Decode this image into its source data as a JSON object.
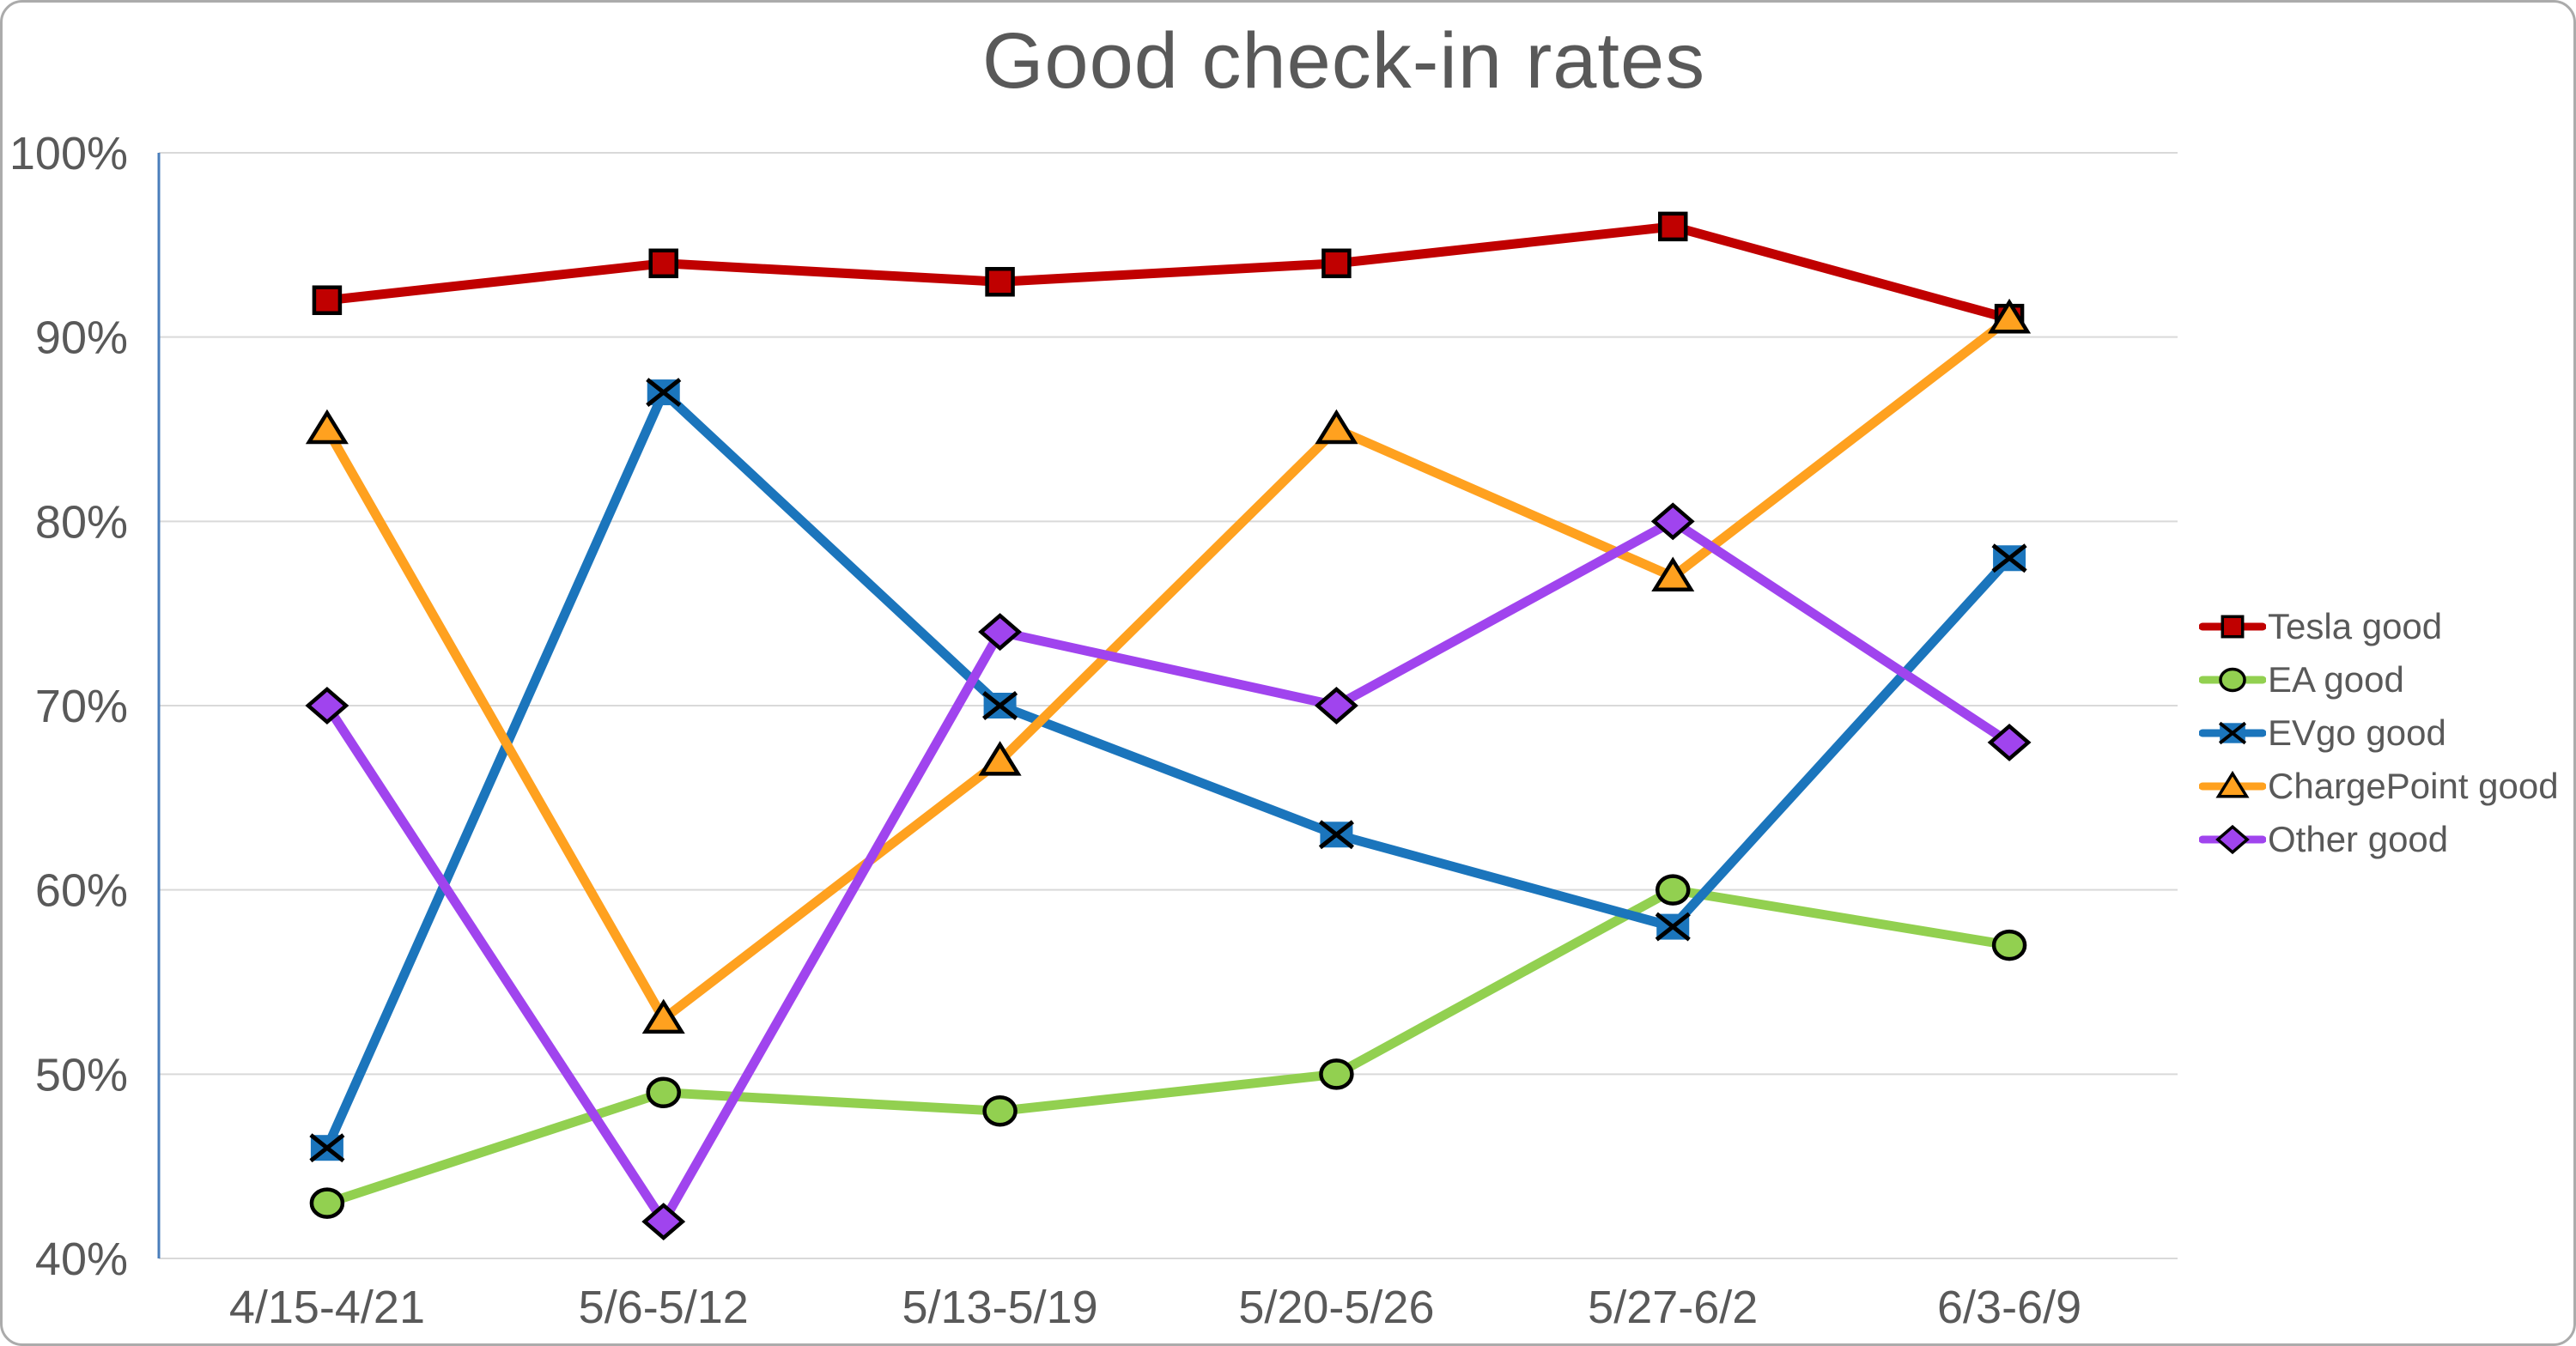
{
  "title": "Good check-in rates",
  "chart_data": {
    "type": "line",
    "title": "Good check-in rates",
    "categories": [
      "4/15-4/21",
      "5/6-5/12",
      "5/13-5/19",
      "5/20-5/26",
      "5/27-6/2",
      "6/3-6/9"
    ],
    "x": [
      1,
      2,
      3,
      4,
      5,
      6
    ],
    "series": [
      {
        "name": "Tesla good",
        "marker": "square",
        "color": "#C00000",
        "values": [
          92,
          94,
          93,
          94,
          96,
          91
        ]
      },
      {
        "name": "EA good",
        "marker": "circle",
        "color": "#92D050",
        "values": [
          43,
          49,
          48,
          50,
          60,
          57
        ]
      },
      {
        "name": "EVgo good",
        "marker": "x-square",
        "color": "#1B75BC",
        "values": [
          46,
          87,
          70,
          63,
          58,
          78
        ]
      },
      {
        "name": "ChargePoint good",
        "marker": "triangle",
        "color": "#FFA11F",
        "values": [
          85,
          53,
          67,
          85,
          77,
          91
        ]
      },
      {
        "name": "Other good",
        "marker": "diamond",
        "color": "#A044EE",
        "values": [
          70,
          42,
          74,
          70,
          80,
          68
        ]
      }
    ],
    "ylabel": "",
    "xlabel": "",
    "ylim": [
      40,
      100
    ],
    "y_tick_step": 10,
    "y_tick_labels": [
      "40%",
      "50%",
      "60%",
      "70%",
      "80%",
      "90%",
      "100%"
    ],
    "grid": true,
    "legend_position": "right"
  },
  "colors": {
    "grid": "#D9D9D9",
    "y_axis_line": "#4A7EBB",
    "text": "#595959",
    "marker_outline": "#000000",
    "canvas_border": "#ABABAB",
    "background": "#FFFFFF"
  }
}
